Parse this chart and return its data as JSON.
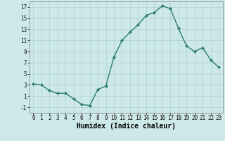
{
  "x": [
    0,
    1,
    2,
    3,
    4,
    5,
    6,
    7,
    8,
    9,
    10,
    11,
    12,
    13,
    14,
    15,
    16,
    17,
    18,
    19,
    20,
    21,
    22,
    23
  ],
  "y": [
    3.2,
    3.0,
    2.0,
    1.5,
    1.5,
    0.5,
    -0.5,
    -0.7,
    2.2,
    2.8,
    8.0,
    11.0,
    12.5,
    13.8,
    15.5,
    16.0,
    17.2,
    16.7,
    13.2,
    10.0,
    9.0,
    9.7,
    7.5,
    6.2
  ],
  "line_color": "#2a7d6e",
  "marker": "D",
  "marker_size": 2.0,
  "background_color": "#cde8e8",
  "grid_color": "#aed0d0",
  "xlabel": "Humidex (Indice chaleur)",
  "xlim": [
    -0.5,
    23.5
  ],
  "ylim": [
    -2,
    18
  ],
  "yticks": [
    -1,
    1,
    3,
    5,
    7,
    9,
    11,
    13,
    15,
    17
  ],
  "xticks": [
    0,
    1,
    2,
    3,
    4,
    5,
    6,
    7,
    8,
    9,
    10,
    11,
    12,
    13,
    14,
    15,
    16,
    17,
    18,
    19,
    20,
    21,
    22,
    23
  ],
  "tick_fontsize": 5.5,
  "xlabel_fontsize": 7.0,
  "linewidth": 1.0
}
